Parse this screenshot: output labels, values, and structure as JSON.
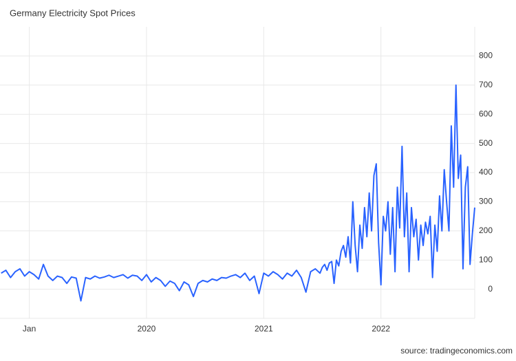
{
  "chart_data": {
    "type": "line",
    "title": "Germany Electricity Spot Prices",
    "source": "source: tradingeconomics.com",
    "x": [
      2018.76,
      2018.8,
      2018.84,
      2018.88,
      2018.92,
      2018.96,
      2019.0,
      2019.04,
      2019.08,
      2019.12,
      2019.16,
      2019.2,
      2019.24,
      2019.28,
      2019.32,
      2019.36,
      2019.4,
      2019.44,
      2019.48,
      2019.52,
      2019.56,
      2019.6,
      2019.64,
      2019.68,
      2019.72,
      2019.76,
      2019.8,
      2019.84,
      2019.88,
      2019.92,
      2019.96,
      2020.0,
      2020.04,
      2020.08,
      2020.12,
      2020.16,
      2020.2,
      2020.24,
      2020.28,
      2020.32,
      2020.36,
      2020.4,
      2020.44,
      2020.48,
      2020.52,
      2020.56,
      2020.6,
      2020.64,
      2020.68,
      2020.72,
      2020.76,
      2020.8,
      2020.84,
      2020.88,
      2020.92,
      2020.96,
      2021.0,
      2021.04,
      2021.08,
      2021.12,
      2021.16,
      2021.2,
      2021.24,
      2021.28,
      2021.32,
      2021.36,
      2021.4,
      2021.44,
      2021.48,
      2021.5,
      2021.52,
      2021.54,
      2021.56,
      2021.58,
      2021.6,
      2021.62,
      2021.64,
      2021.66,
      2021.68,
      2021.7,
      2021.72,
      2021.74,
      2021.76,
      2021.78,
      2021.8,
      2021.82,
      2021.84,
      2021.86,
      2021.88,
      2021.9,
      2021.92,
      2021.94,
      2021.96,
      2021.98,
      2022.0,
      2022.02,
      2022.04,
      2022.06,
      2022.08,
      2022.1,
      2022.12,
      2022.14,
      2022.16,
      2022.18,
      2022.2,
      2022.22,
      2022.24,
      2022.26,
      2022.28,
      2022.3,
      2022.32,
      2022.34,
      2022.36,
      2022.38,
      2022.4,
      2022.42,
      2022.44,
      2022.46,
      2022.48,
      2022.5,
      2022.52,
      2022.54,
      2022.56,
      2022.58,
      2022.6,
      2022.62,
      2022.64,
      2022.66,
      2022.68,
      2022.7,
      2022.72,
      2022.74,
      2022.76,
      2022.78,
      2022.8
    ],
    "series": [
      {
        "name": "Germany Electricity Spot Prices",
        "color": "#2962ff",
        "values": [
          55,
          65,
          40,
          60,
          70,
          45,
          60,
          50,
          35,
          85,
          45,
          30,
          45,
          40,
          20,
          42,
          38,
          -40,
          40,
          35,
          45,
          38,
          42,
          48,
          40,
          45,
          50,
          38,
          48,
          45,
          30,
          50,
          25,
          40,
          30,
          10,
          28,
          20,
          -5,
          25,
          15,
          -25,
          20,
          30,
          25,
          35,
          30,
          40,
          38,
          45,
          50,
          40,
          55,
          30,
          45,
          -15,
          55,
          45,
          60,
          50,
          35,
          55,
          45,
          65,
          40,
          -10,
          60,
          70,
          55,
          75,
          85,
          65,
          90,
          95,
          20,
          100,
          80,
          130,
          150,
          110,
          180,
          90,
          300,
          150,
          60,
          220,
          140,
          280,
          180,
          330,
          200,
          390,
          430,
          160,
          15,
          250,
          200,
          300,
          120,
          280,
          60,
          350,
          210,
          490,
          180,
          330,
          60,
          280,
          180,
          240,
          100,
          220,
          150,
          230,
          190,
          250,
          40,
          220,
          130,
          320,
          200,
          410,
          300,
          200,
          560,
          350,
          700,
          380,
          460,
          70,
          350,
          420,
          85,
          190,
          280
        ]
      }
    ],
    "xlim": [
      2018.75,
      2022.8
    ],
    "xticks": [
      {
        "value": 2019,
        "label": "Jan"
      },
      2020,
      2021,
      2022
    ],
    "ylim": [
      -100,
      900
    ],
    "yticks": [
      0,
      100,
      200,
      300,
      400,
      500,
      600,
      700,
      800
    ],
    "grid": true
  }
}
